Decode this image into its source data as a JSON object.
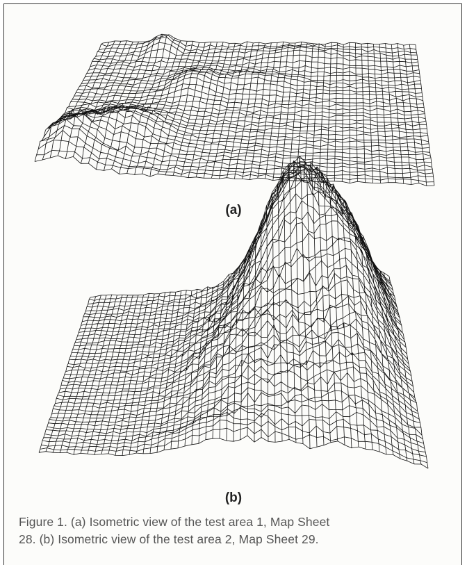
{
  "figure": {
    "panels": [
      {
        "label": "(a)"
      },
      {
        "label": "(b)"
      }
    ],
    "caption_lines": [
      "Figure 1.  (a) Isometric view of the test area 1, Map Sheet",
      "28. (b) Isometric view of the test area 2, Map Sheet 29."
    ]
  }
}
